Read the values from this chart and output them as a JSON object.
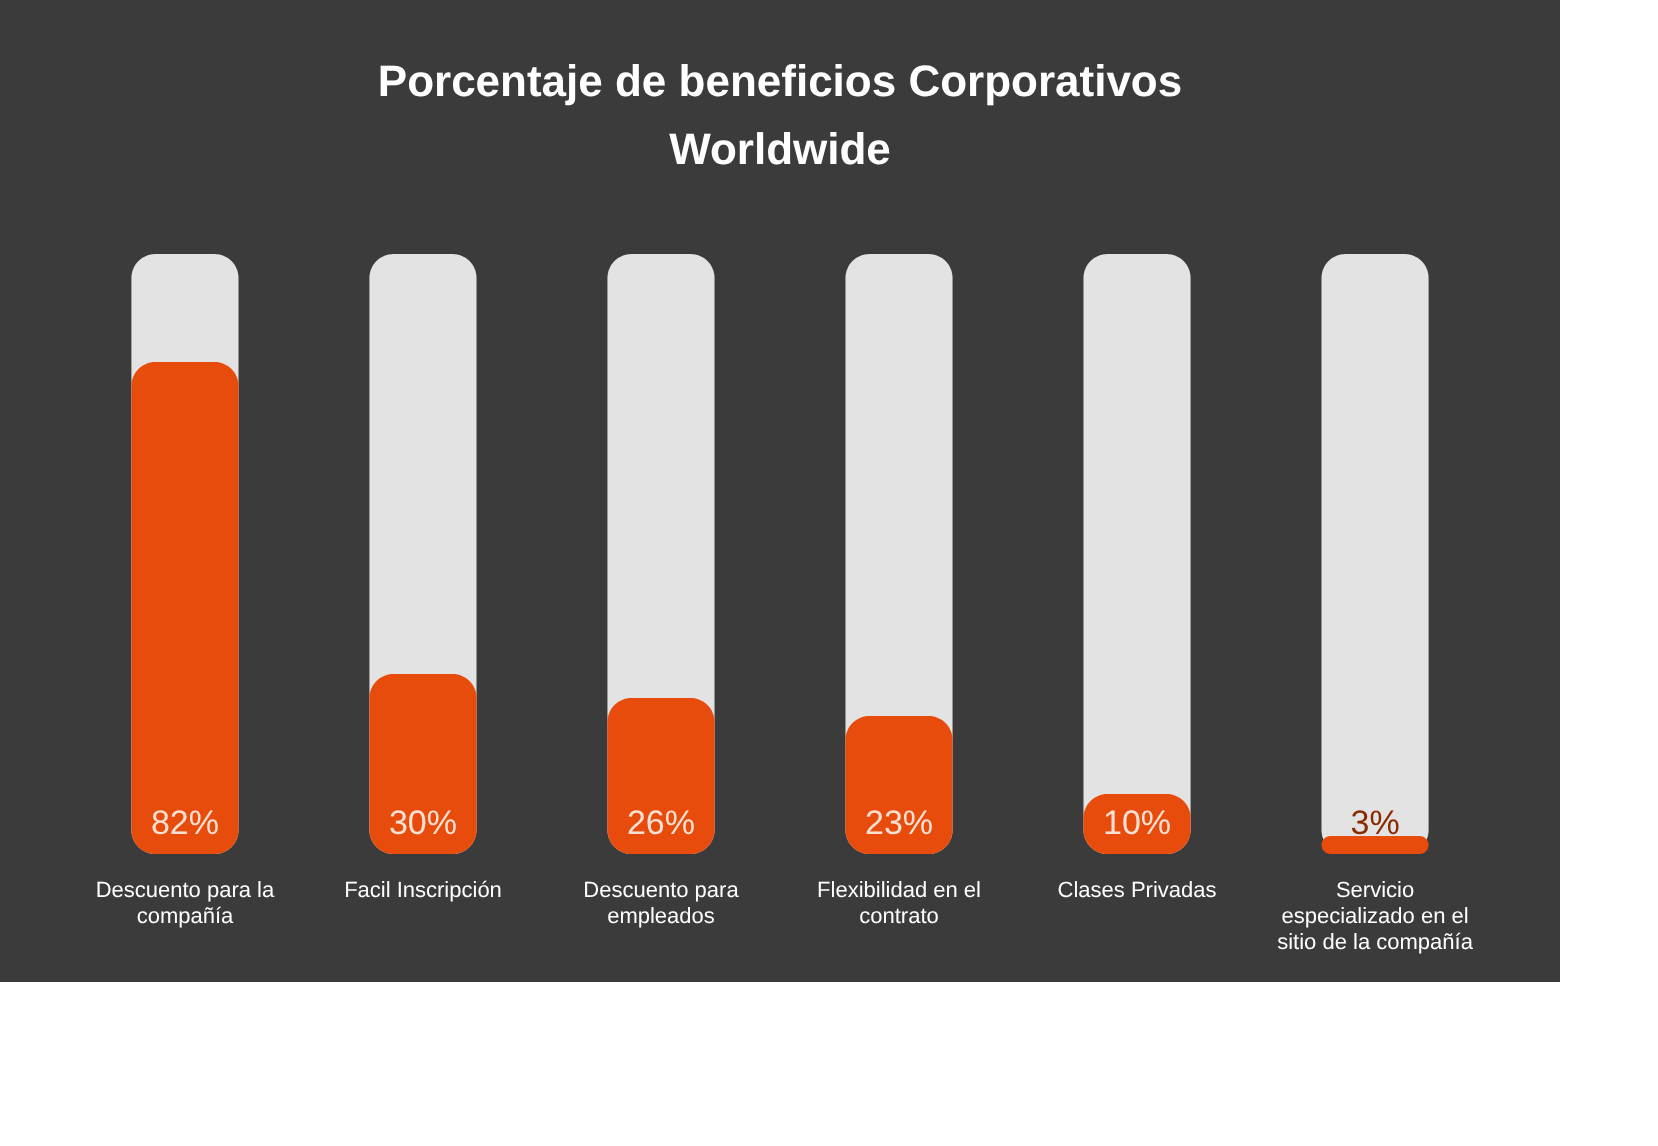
{
  "chart_data": {
    "type": "bar",
    "title": [
      "Porcentaje de beneficios  Corporativos",
      "Worldwide"
    ],
    "categories": [
      "Descuento para la compañía",
      "Facil Inscripción",
      "Descuento para empleados",
      "Flexibilidad en el contrato",
      "Clases Privadas",
      "Servicio especializado en el sitio de la compañía"
    ],
    "values": [
      82,
      30,
      26,
      23,
      10,
      3
    ],
    "value_labels": [
      "82%",
      "30%",
      "26%",
      "23%",
      "10%",
      "3%"
    ],
    "color": "#e84c0c",
    "ylim": [
      0,
      100
    ],
    "tick_labels": "x",
    "grid": false
  }
}
